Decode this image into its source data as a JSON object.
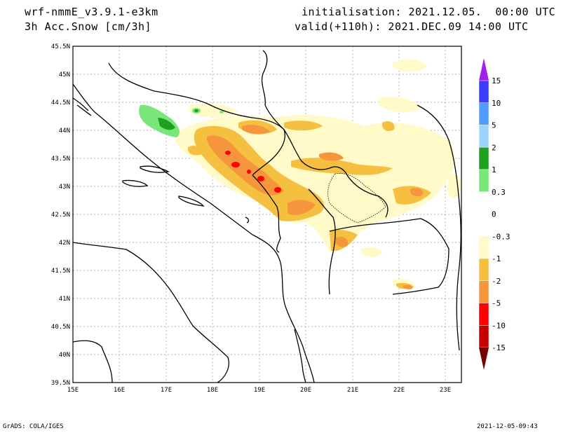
{
  "header": {
    "model": "wrf-nmmE_v3.9.1-e3km",
    "variable": "3h Acc.Snow [cm/3h]",
    "init": "initialisation: 2021.12.05.  00:00 UTC",
    "valid": "valid(+110h): 2021.DEC.09 14:00 UTC"
  },
  "map": {
    "lon_ticks": [
      "15E",
      "16E",
      "17E",
      "18E",
      "19E",
      "20E",
      "21E",
      "22E",
      "23E"
    ],
    "lat_ticks": [
      "39.5N",
      "40N",
      "40.5N",
      "41N",
      "41.5N",
      "42N",
      "42.5N",
      "43N",
      "43.5N",
      "44N",
      "44.5N",
      "45N",
      "45.5N"
    ]
  },
  "colorbar": {
    "levels": [
      "15",
      "10",
      "5",
      "2",
      "1",
      "0.3",
      "0",
      "-0.3",
      "-1",
      "-2",
      "-5",
      "-10",
      "-15"
    ],
    "colors": [
      "#a020f0",
      "#3c3cff",
      "#4f9bff",
      "#a0d2ff",
      "#1ea01e",
      "#78e678",
      "#ffffff",
      "#ffffff",
      "#fffac8",
      "#f5c040",
      "#f5963c",
      "#ff0000",
      "#c80000",
      "#a00000",
      "#780000"
    ]
  },
  "footer": {
    "left": "GrADS: COLA/IGES",
    "right": "2021-12-05-09:43"
  }
}
